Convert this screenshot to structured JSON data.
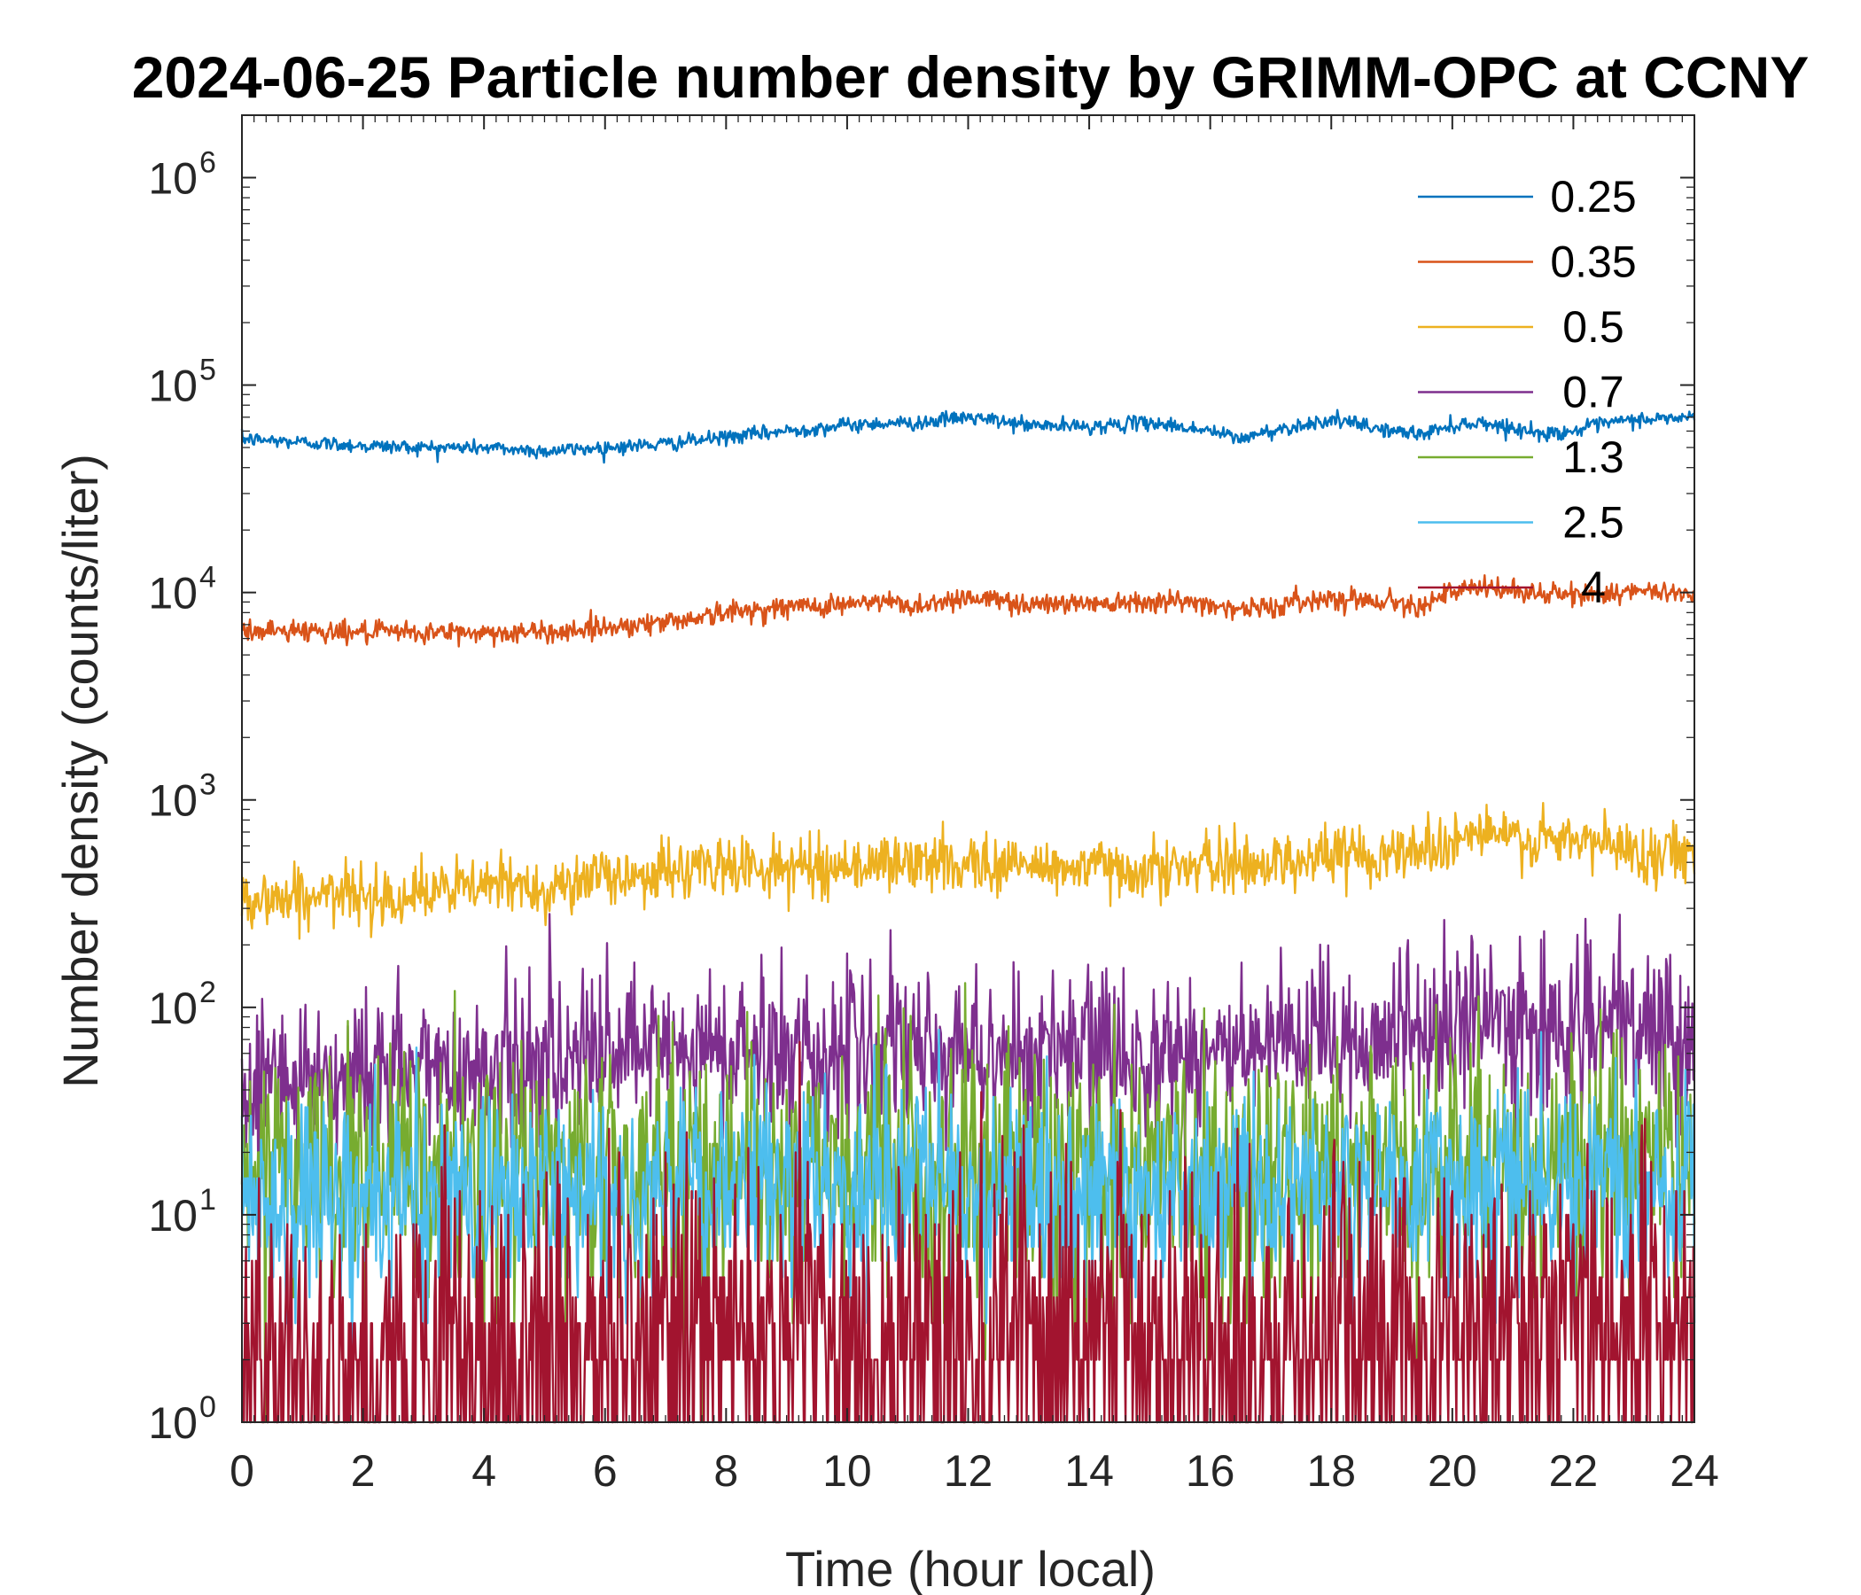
{
  "chart_data": {
    "type": "line",
    "title": "2024-06-25 Particle number density by GRIMM-OPC at CCNY",
    "xlabel": "Time (hour local)",
    "ylabel": "Number density (counts/liter)",
    "xlim": [
      0,
      24
    ],
    "ylim": [
      1,
      2000000
    ],
    "yscale": "log",
    "x_ticks": [
      "0",
      "2",
      "4",
      "6",
      "8",
      "10",
      "12",
      "14",
      "16",
      "18",
      "20",
      "22",
      "24"
    ],
    "y_ticks": [
      {
        "base": "10",
        "exp": "0"
      },
      {
        "base": "10",
        "exp": "1"
      },
      {
        "base": "10",
        "exp": "2"
      },
      {
        "base": "10",
        "exp": "3"
      },
      {
        "base": "10",
        "exp": "4"
      },
      {
        "base": "10",
        "exp": "5"
      },
      {
        "base": "10",
        "exp": "6"
      }
    ],
    "legend_position": "top-right",
    "grid": false,
    "x": [
      0,
      1,
      2,
      3,
      4,
      5,
      6,
      7,
      8,
      9,
      10,
      10.8,
      11,
      12,
      13,
      14,
      15,
      16,
      16.5,
      17,
      18,
      19,
      19.5,
      20,
      20.5,
      21,
      21.5,
      22,
      22.5,
      23,
      24
    ],
    "series": [
      {
        "name": "0.25",
        "color": "#0072BD",
        "noise": 0.04,
        "values": [
          55000,
          53000,
          51000,
          50000,
          50000,
          48000,
          50000,
          52000,
          56000,
          60000,
          64000,
          66000,
          65000,
          70000,
          64000,
          63000,
          66000,
          60000,
          55000,
          60000,
          68000,
          60000,
          58000,
          64000,
          66000,
          62000,
          58000,
          60000,
          65000,
          68000,
          70000
        ]
      },
      {
        "name": "0.35",
        "color": "#D95319",
        "noise": 0.06,
        "values": [
          6500,
          6600,
          6400,
          6400,
          6400,
          6400,
          6800,
          7200,
          8000,
          8500,
          8800,
          9000,
          8500,
          9500,
          8800,
          8900,
          9200,
          8800,
          8300,
          8500,
          9500,
          9000,
          8800,
          10000,
          10500,
          10200,
          9800,
          9700,
          10000,
          10000,
          10000
        ]
      },
      {
        "name": "0.5",
        "color": "#EDB120",
        "noise": 0.16,
        "values": [
          330,
          340,
          350,
          350,
          390,
          380,
          420,
          450,
          480,
          470,
          480,
          500,
          490,
          500,
          480,
          470,
          470,
          480,
          490,
          500,
          540,
          560,
          580,
          640,
          700,
          650,
          620,
          630,
          620,
          560,
          560
        ]
      },
      {
        "name": "0.7",
        "color": "#7E2F8E",
        "noise": 0.45,
        "values": [
          45,
          48,
          48,
          50,
          52,
          55,
          58,
          60,
          62,
          62,
          62,
          60,
          60,
          62,
          60,
          60,
          60,
          62,
          60,
          60,
          68,
          75,
          78,
          85,
          88,
          82,
          80,
          80,
          82,
          75,
          75
        ]
      },
      {
        "name": "1.3",
        "color": "#77AC30",
        "noise": 0.7,
        "values": [
          15,
          16,
          15,
          15,
          15,
          16,
          16,
          17,
          16,
          16,
          16,
          16,
          16,
          16,
          16,
          16,
          16,
          16,
          16,
          16,
          17,
          17,
          17,
          18,
          18,
          18,
          17,
          17,
          18,
          18,
          18
        ]
      },
      {
        "name": "2.5",
        "color": "#4DBEEE",
        "noise": 0.55,
        "values": [
          12,
          12,
          12,
          12,
          12,
          12,
          12,
          13,
          13,
          13,
          13,
          13,
          13,
          13,
          13,
          13,
          13,
          13,
          13,
          13,
          13,
          14,
          14,
          14,
          14,
          14,
          14,
          14,
          14,
          14,
          14
        ]
      },
      {
        "name": "4",
        "color": "#A2142F",
        "noise": 1.0,
        "values": [
          2,
          2,
          2,
          2,
          2,
          2.2,
          2.2,
          2.4,
          2.5,
          2.5,
          2.5,
          2.5,
          2.5,
          2.5,
          2.4,
          2.4,
          2.4,
          2.5,
          2.5,
          2.5,
          2.6,
          2.8,
          2.8,
          3,
          3,
          3,
          3,
          3,
          3,
          3,
          3
        ]
      }
    ]
  }
}
